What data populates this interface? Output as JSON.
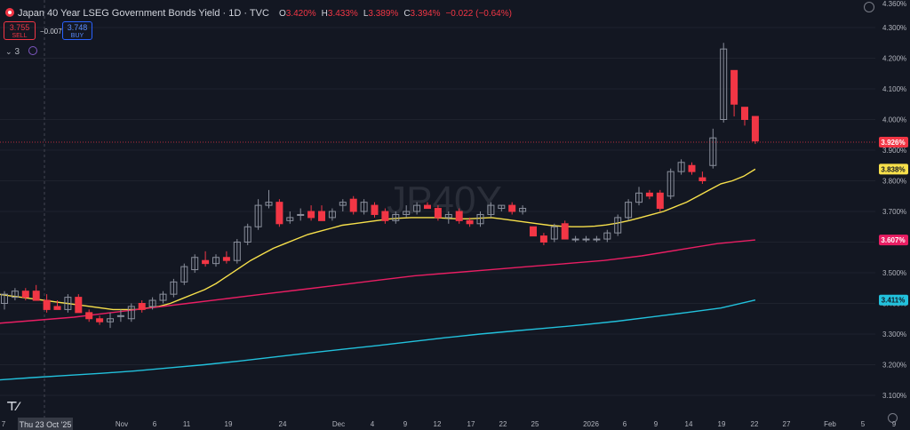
{
  "header": {
    "title": "Japan 40 Year LSEG Government Bonds Yield · 1D · TVC",
    "ohlc": [
      {
        "k": "O",
        "v": "3.420%"
      },
      {
        "k": "H",
        "v": "3.433%"
      },
      {
        "k": "L",
        "v": "3.389%"
      },
      {
        "k": "C",
        "v": "3.394%"
      }
    ],
    "change": "−0.022 (−0.64%)"
  },
  "trade": {
    "sell_price": "3.755",
    "sell_label": "SELL",
    "spread": "−0.007",
    "buy_price": "3.748",
    "buy_label": "BUY"
  },
  "indicators_count": "3",
  "watermark": "JP40Y",
  "crosshair_label": "Thu 23 Oct '25",
  "colors": {
    "bg": "#131722",
    "grid": "#1e222d",
    "up": "#26a69a",
    "down": "#f23645",
    "ma_fast": "#f7e04b",
    "ma_mid": "#e91e63",
    "ma_slow": "#22c1dc",
    "axis_text": "#b2b5be"
  },
  "chart_data": {
    "type": "candlestick",
    "ylim": [
      3.05,
      4.34
    ],
    "y_ticks": [
      "4.300%",
      "4.200%",
      "4.100%",
      "4.000%",
      "3.900%",
      "3.800%",
      "3.700%",
      "3.600%",
      "3.500%",
      "3.400%",
      "3.300%",
      "3.200%",
      "3.100%"
    ],
    "top_partial_tick": "4.360%",
    "x_ticks": [
      "7",
      "Thu 23 Oct '25",
      "Nov",
      "6",
      "11",
      "19",
      "24",
      "Dec",
      "4",
      "9",
      "12",
      "17",
      "22",
      "25",
      "2026",
      "6",
      "9",
      "14",
      "19",
      "22",
      "27",
      "Feb",
      "5",
      "9"
    ],
    "last_price": {
      "label": "3.926%",
      "value": 3.926
    },
    "candles": [
      {
        "o": 3.4,
        "h": 3.44,
        "l": 3.38,
        "c": 3.43
      },
      {
        "o": 3.42,
        "h": 3.45,
        "l": 3.41,
        "c": 3.44
      },
      {
        "o": 3.44,
        "h": 3.45,
        "l": 3.41,
        "c": 3.42
      },
      {
        "o": 3.44,
        "h": 3.46,
        "l": 3.41,
        "c": 3.41
      },
      {
        "o": 3.41,
        "h": 3.43,
        "l": 3.37,
        "c": 3.38
      },
      {
        "o": 3.39,
        "h": 3.41,
        "l": 3.38,
        "c": 3.38
      },
      {
        "o": 3.38,
        "h": 3.43,
        "l": 3.37,
        "c": 3.42
      },
      {
        "o": 3.42,
        "h": 3.43,
        "l": 3.37,
        "c": 3.37
      },
      {
        "o": 3.37,
        "h": 3.38,
        "l": 3.34,
        "c": 3.35
      },
      {
        "o": 3.35,
        "h": 3.36,
        "l": 3.33,
        "c": 3.34
      },
      {
        "o": 3.34,
        "h": 3.37,
        "l": 3.32,
        "c": 3.35
      },
      {
        "o": 3.36,
        "h": 3.38,
        "l": 3.34,
        "c": 3.36
      },
      {
        "o": 3.35,
        "h": 3.4,
        "l": 3.34,
        "c": 3.39
      },
      {
        "o": 3.4,
        "h": 3.41,
        "l": 3.37,
        "c": 3.38
      },
      {
        "o": 3.39,
        "h": 3.42,
        "l": 3.38,
        "c": 3.41
      },
      {
        "o": 3.41,
        "h": 3.44,
        "l": 3.4,
        "c": 3.43
      },
      {
        "o": 3.43,
        "h": 3.48,
        "l": 3.42,
        "c": 3.47
      },
      {
        "o": 3.47,
        "h": 3.53,
        "l": 3.46,
        "c": 3.52
      },
      {
        "o": 3.51,
        "h": 3.56,
        "l": 3.5,
        "c": 3.55
      },
      {
        "o": 3.54,
        "h": 3.57,
        "l": 3.52,
        "c": 3.53
      },
      {
        "o": 3.53,
        "h": 3.56,
        "l": 3.52,
        "c": 3.55
      },
      {
        "o": 3.55,
        "h": 3.57,
        "l": 3.53,
        "c": 3.54
      },
      {
        "o": 3.54,
        "h": 3.61,
        "l": 3.53,
        "c": 3.6
      },
      {
        "o": 3.6,
        "h": 3.66,
        "l": 3.59,
        "c": 3.65
      },
      {
        "o": 3.65,
        "h": 3.74,
        "l": 3.64,
        "c": 3.72
      },
      {
        "o": 3.72,
        "h": 3.77,
        "l": 3.71,
        "c": 3.73
      },
      {
        "o": 3.73,
        "h": 3.74,
        "l": 3.65,
        "c": 3.66
      },
      {
        "o": 3.67,
        "h": 3.7,
        "l": 3.66,
        "c": 3.68
      },
      {
        "o": 3.69,
        "h": 3.71,
        "l": 3.67,
        "c": 3.69
      },
      {
        "o": 3.7,
        "h": 3.72,
        "l": 3.67,
        "c": 3.68
      },
      {
        "o": 3.7,
        "h": 3.72,
        "l": 3.67,
        "c": 3.67
      },
      {
        "o": 3.68,
        "h": 3.71,
        "l": 3.67,
        "c": 3.7
      },
      {
        "o": 3.72,
        "h": 3.74,
        "l": 3.7,
        "c": 3.73
      },
      {
        "o": 3.74,
        "h": 3.75,
        "l": 3.69,
        "c": 3.7
      },
      {
        "o": 3.7,
        "h": 3.74,
        "l": 3.69,
        "c": 3.73
      },
      {
        "o": 3.72,
        "h": 3.73,
        "l": 3.68,
        "c": 3.69
      },
      {
        "o": 3.7,
        "h": 3.71,
        "l": 3.66,
        "c": 3.67
      },
      {
        "o": 3.67,
        "h": 3.7,
        "l": 3.66,
        "c": 3.69
      },
      {
        "o": 3.69,
        "h": 3.72,
        "l": 3.68,
        "c": 3.7
      },
      {
        "o": 3.7,
        "h": 3.73,
        "l": 3.69,
        "c": 3.72
      },
      {
        "o": 3.72,
        "h": 3.73,
        "l": 3.71,
        "c": 3.71
      },
      {
        "o": 3.71,
        "h": 3.72,
        "l": 3.67,
        "c": 3.68
      },
      {
        "o": 3.68,
        "h": 3.7,
        "l": 3.66,
        "c": 3.69
      },
      {
        "o": 3.7,
        "h": 3.71,
        "l": 3.66,
        "c": 3.67
      },
      {
        "o": 3.67,
        "h": 3.68,
        "l": 3.65,
        "c": 3.66
      },
      {
        "o": 3.66,
        "h": 3.7,
        "l": 3.65,
        "c": 3.69
      },
      {
        "o": 3.69,
        "h": 3.73,
        "l": 3.68,
        "c": 3.72
      },
      {
        "o": 3.71,
        "h": 3.72,
        "l": 3.7,
        "c": 3.72
      },
      {
        "o": 3.72,
        "h": 3.73,
        "l": 3.69,
        "c": 3.7
      },
      {
        "o": 3.7,
        "h": 3.72,
        "l": 3.69,
        "c": 3.71
      },
      {
        "o": 3.65,
        "h": 3.65,
        "l": 3.62,
        "c": 3.62
      },
      {
        "o": 3.62,
        "h": 3.63,
        "l": 3.59,
        "c": 3.6
      },
      {
        "o": 3.61,
        "h": 3.66,
        "l": 3.6,
        "c": 3.65
      },
      {
        "o": 3.66,
        "h": 3.67,
        "l": 3.61,
        "c": 3.61
      },
      {
        "o": 3.61,
        "h": 3.62,
        "l": 3.6,
        "c": 3.61
      },
      {
        "o": 3.61,
        "h": 3.62,
        "l": 3.6,
        "c": 3.61
      },
      {
        "o": 3.61,
        "h": 3.62,
        "l": 3.6,
        "c": 3.61
      },
      {
        "o": 3.61,
        "h": 3.64,
        "l": 3.6,
        "c": 3.63
      },
      {
        "o": 3.63,
        "h": 3.69,
        "l": 3.62,
        "c": 3.68
      },
      {
        "o": 3.68,
        "h": 3.74,
        "l": 3.67,
        "c": 3.73
      },
      {
        "o": 3.73,
        "h": 3.78,
        "l": 3.72,
        "c": 3.76
      },
      {
        "o": 3.76,
        "h": 3.77,
        "l": 3.74,
        "c": 3.75
      },
      {
        "o": 3.76,
        "h": 3.77,
        "l": 3.7,
        "c": 3.71
      },
      {
        "o": 3.75,
        "h": 3.84,
        "l": 3.74,
        "c": 3.83
      },
      {
        "o": 3.83,
        "h": 3.87,
        "l": 3.82,
        "c": 3.86
      },
      {
        "o": 3.85,
        "h": 3.86,
        "l": 3.82,
        "c": 3.83
      },
      {
        "o": 3.81,
        "h": 3.83,
        "l": 3.79,
        "c": 3.8
      },
      {
        "o": 3.85,
        "h": 3.97,
        "l": 3.84,
        "c": 3.94
      },
      {
        "o": 4.0,
        "h": 4.25,
        "l": 3.99,
        "c": 4.23
      },
      {
        "o": 4.16,
        "h": 4.16,
        "l": 4.01,
        "c": 4.05
      },
      {
        "o": 4.04,
        "h": 4.04,
        "l": 3.98,
        "c": 4.0
      },
      {
        "o": 4.01,
        "h": 4.01,
        "l": 3.92,
        "c": 3.93
      }
    ],
    "series": [
      {
        "name": "",
        "label": "3.838%",
        "color": "#f7e04b",
        "values": [
          3.43,
          3.425,
          3.42,
          3.415,
          3.41,
          3.405,
          3.4,
          3.395,
          3.39,
          3.385,
          3.38,
          3.38,
          3.38,
          3.385,
          3.39,
          3.4,
          3.415,
          3.43,
          3.445,
          3.465,
          3.49,
          3.515,
          3.54,
          3.56,
          3.58,
          3.595,
          3.61,
          3.625,
          3.635,
          3.645,
          3.655,
          3.66,
          3.665,
          3.67,
          3.675,
          3.678,
          3.68,
          3.68,
          3.68,
          3.678,
          3.676,
          3.676,
          3.678,
          3.68,
          3.675,
          3.67,
          3.665,
          3.66,
          3.655,
          3.652,
          3.65,
          3.65,
          3.652,
          3.656,
          3.662,
          3.67,
          3.68,
          3.69,
          3.7,
          3.715,
          3.73,
          3.75,
          3.77,
          3.79,
          3.8,
          3.815,
          3.838
        ]
      },
      {
        "name": "",
        "label": "3.607%",
        "color": "#e91e63",
        "values": [
          3.335,
          3.345,
          3.355,
          3.37,
          3.385,
          3.4,
          3.415,
          3.43,
          3.445,
          3.46,
          3.475,
          3.49,
          3.5,
          3.51,
          3.52,
          3.53,
          3.54,
          3.555,
          3.575,
          3.595,
          3.607
        ]
      },
      {
        "name": "",
        "label": "3.411%",
        "color": "#22c1dc",
        "values": [
          3.15,
          3.158,
          3.165,
          3.172,
          3.18,
          3.19,
          3.2,
          3.212,
          3.225,
          3.238,
          3.25,
          3.262,
          3.275,
          3.288,
          3.3,
          3.31,
          3.32,
          3.33,
          3.342,
          3.356,
          3.37,
          3.385,
          3.411
        ]
      }
    ]
  }
}
